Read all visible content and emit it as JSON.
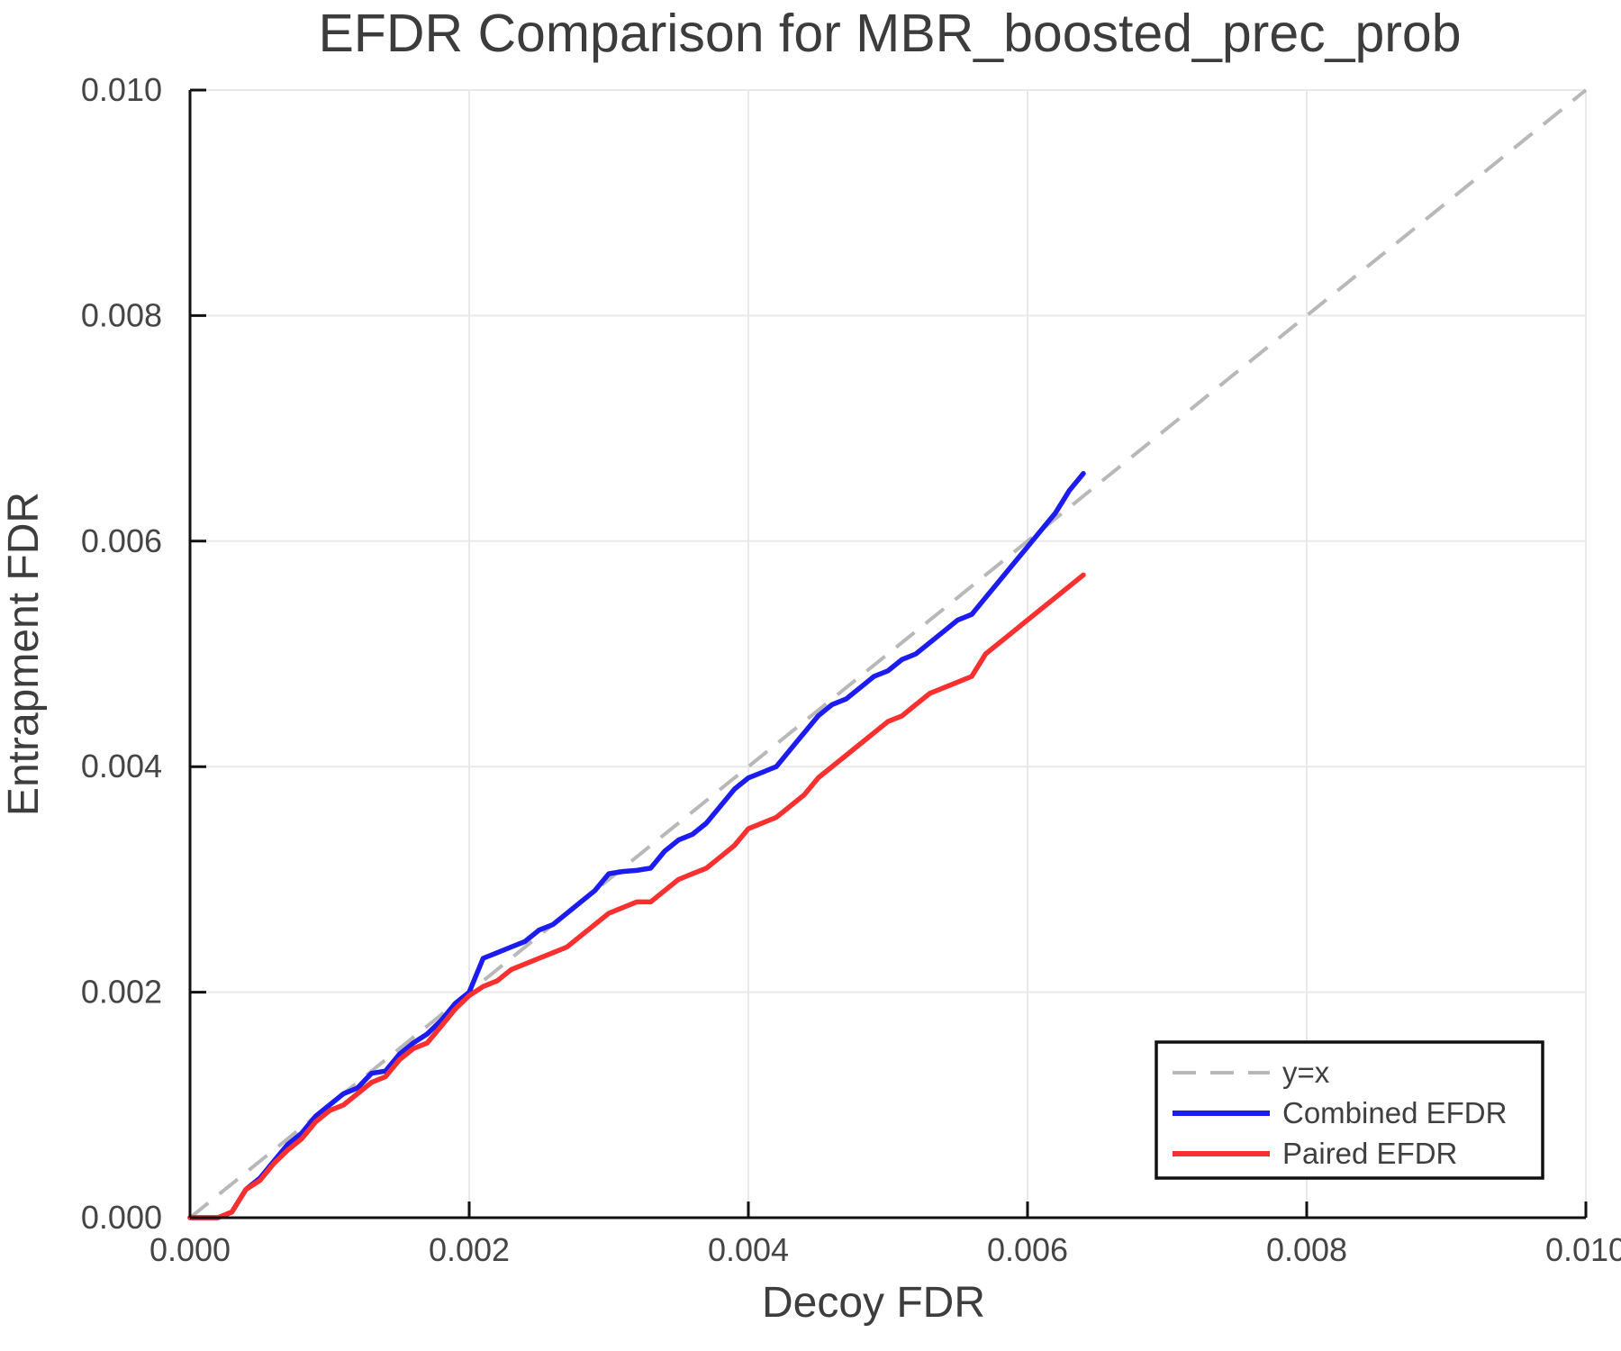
{
  "chart_data": {
    "type": "line",
    "title": "EFDR Comparison for MBR_boosted_prec_prob",
    "xlabel": "Decoy FDR",
    "ylabel": "Entrapment FDR",
    "xlim": [
      0.0,
      0.01
    ],
    "ylim": [
      0.0,
      0.01
    ],
    "grid": true,
    "x_tick_values": [
      0.0,
      0.002,
      0.004,
      0.006,
      0.008,
      0.01
    ],
    "x_tick_labels": [
      "0.000",
      "0.002",
      "0.004",
      "0.006",
      "0.008",
      "0.010"
    ],
    "y_tick_values": [
      0.0,
      0.002,
      0.004,
      0.006,
      0.008,
      0.01
    ],
    "y_tick_labels": [
      "0.000",
      "0.002",
      "0.004",
      "0.006",
      "0.008",
      "0.010"
    ],
    "legend_position": "lower right",
    "reference_line": {
      "name": "y=x",
      "x": [
        0.0,
        0.01
      ],
      "y": [
        0.0,
        0.01
      ],
      "color": "#b8b8b8",
      "style": "dashed"
    },
    "series": [
      {
        "name": "Combined EFDR",
        "color": "#1c1cf0",
        "x": [
          0,
          0.0001,
          0.0002,
          0.0003,
          0.0004,
          0.0005,
          0.0006,
          0.0007,
          0.0008,
          0.0009,
          0.001,
          0.0011,
          0.0012,
          0.0013,
          0.0014,
          0.0015,
          0.0016,
          0.0017,
          0.0018,
          0.0019,
          0.002,
          0.0021,
          0.0022,
          0.0023,
          0.0024,
          0.0025,
          0.0026,
          0.0027,
          0.0028,
          0.0029,
          0.003,
          0.0031,
          0.0032,
          0.0033,
          0.0034,
          0.0035,
          0.0036,
          0.0037,
          0.0038,
          0.0039,
          0.004,
          0.0041,
          0.0042,
          0.0043,
          0.0044,
          0.0045,
          0.0046,
          0.0047,
          0.0048,
          0.0049,
          0.005,
          0.0051,
          0.0052,
          0.0053,
          0.0054,
          0.0055,
          0.0056,
          0.0057,
          0.0058,
          0.0059,
          0.006,
          0.0061,
          0.0062,
          0.0063,
          0.0064
        ],
        "y": [
          0,
          0,
          0,
          5e-05,
          0.00025,
          0.00035,
          0.0005,
          0.00065,
          0.00075,
          0.0009,
          0.001,
          0.0011,
          0.00115,
          0.00128,
          0.0013,
          0.00145,
          0.00155,
          0.00163,
          0.00175,
          0.0019,
          0.002,
          0.0023,
          0.00235,
          0.0024,
          0.00245,
          0.00255,
          0.0026,
          0.0027,
          0.0028,
          0.0029,
          0.00305,
          0.00307,
          0.00308,
          0.0031,
          0.00325,
          0.00335,
          0.0034,
          0.0035,
          0.00365,
          0.0038,
          0.0039,
          0.00395,
          0.004,
          0.00415,
          0.0043,
          0.00445,
          0.00455,
          0.0046,
          0.0047,
          0.0048,
          0.00485,
          0.00495,
          0.005,
          0.0051,
          0.0052,
          0.0053,
          0.00535,
          0.0055,
          0.00565,
          0.0058,
          0.00595,
          0.0061,
          0.00625,
          0.00645,
          0.0066
        ]
      },
      {
        "name": "Paired EFDR",
        "color": "#f83030",
        "x": [
          0,
          0.0001,
          0.0002,
          0.0003,
          0.0004,
          0.0005,
          0.0006,
          0.0007,
          0.0008,
          0.0009,
          0.001,
          0.0011,
          0.0012,
          0.0013,
          0.0014,
          0.0015,
          0.0016,
          0.0017,
          0.0018,
          0.0019,
          0.002,
          0.0021,
          0.0022,
          0.0023,
          0.0024,
          0.0025,
          0.0026,
          0.0027,
          0.0028,
          0.0029,
          0.003,
          0.0031,
          0.0032,
          0.0033,
          0.0034,
          0.0035,
          0.0036,
          0.0037,
          0.0038,
          0.0039,
          0.004,
          0.0041,
          0.0042,
          0.0043,
          0.0044,
          0.0045,
          0.0046,
          0.0047,
          0.0048,
          0.0049,
          0.005,
          0.0051,
          0.0052,
          0.0053,
          0.0054,
          0.0055,
          0.0056,
          0.0057,
          0.0058,
          0.0059,
          0.006,
          0.0061,
          0.0062,
          0.0063,
          0.0064
        ],
        "y": [
          0,
          0,
          0,
          5e-05,
          0.00025,
          0.00033,
          0.00048,
          0.0006,
          0.0007,
          0.00085,
          0.00095,
          0.001,
          0.0011,
          0.0012,
          0.00125,
          0.0014,
          0.0015,
          0.00155,
          0.0017,
          0.00185,
          0.00197,
          0.00205,
          0.0021,
          0.0022,
          0.00225,
          0.0023,
          0.00235,
          0.0024,
          0.0025,
          0.0026,
          0.0027,
          0.00275,
          0.0028,
          0.0028,
          0.0029,
          0.003,
          0.00305,
          0.0031,
          0.0032,
          0.0033,
          0.00345,
          0.0035,
          0.00355,
          0.00365,
          0.00375,
          0.0039,
          0.004,
          0.0041,
          0.0042,
          0.0043,
          0.0044,
          0.00445,
          0.00455,
          0.00465,
          0.0047,
          0.00475,
          0.0048,
          0.005,
          0.0051,
          0.0052,
          0.0053,
          0.0054,
          0.0055,
          0.0056,
          0.0057
        ]
      }
    ]
  },
  "legend": {
    "items": [
      {
        "label": "y=x",
        "color": "#b8b8b8",
        "style": "dashed"
      },
      {
        "label": "Combined EFDR",
        "color": "#1c1cf0",
        "style": "solid"
      },
      {
        "label": "Paired EFDR",
        "color": "#f83030",
        "style": "solid"
      }
    ]
  },
  "colors": {
    "grid": "#e9e9e9",
    "spine": "#111111",
    "text": "#3d3d3d",
    "background": "#ffffff"
  }
}
